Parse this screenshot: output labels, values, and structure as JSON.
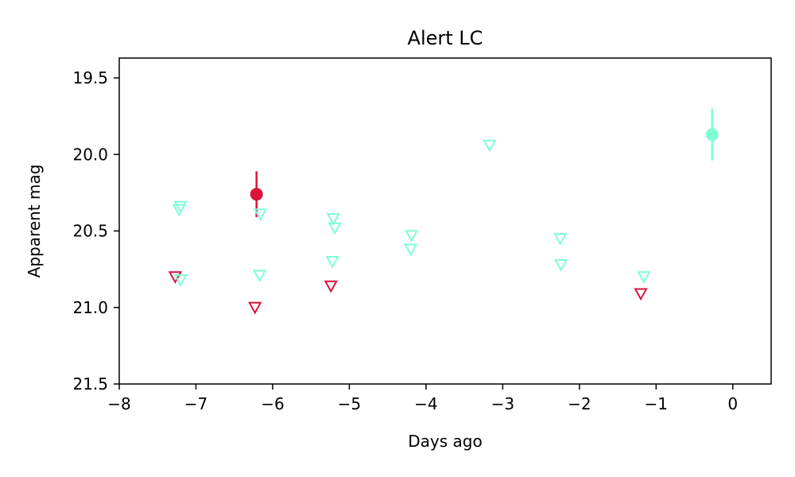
{
  "chart_data": {
    "type": "scatter",
    "title": "Alert LC",
    "xlabel": "Days ago",
    "ylabel": "Apparent mag",
    "xlim": [
      -8,
      0.5
    ],
    "ylim": [
      21.5,
      19.37
    ],
    "y_inverted": true,
    "grid": false,
    "x_ticks": [
      -8,
      -7,
      -6,
      -5,
      -4,
      -3,
      -2,
      -1,
      0
    ],
    "x_tick_labels": [
      "−8",
      "−7",
      "−6",
      "−5",
      "−4",
      "−3",
      "−2",
      "−1",
      "0"
    ],
    "y_ticks": [
      19.5,
      20.0,
      20.5,
      21.0,
      21.5
    ],
    "y_tick_labels": [
      "19.5",
      "20.0",
      "20.5",
      "21.0",
      "21.5"
    ],
    "colors": {
      "band_a": "#DC143C",
      "band_b": "#7FFFD4"
    },
    "series": [
      {
        "color": "#DC143C",
        "detections": [
          {
            "x": -6.21,
            "y": 20.26,
            "yerr": 0.15
          }
        ],
        "upper_limits": [
          {
            "x": -7.27,
            "y": 20.8
          },
          {
            "x": -6.23,
            "y": 21.0
          },
          {
            "x": -5.24,
            "y": 20.86
          },
          {
            "x": -1.2,
            "y": 20.91
          }
        ]
      },
      {
        "color": "#7FFFD4",
        "detections": [
          {
            "x": -0.27,
            "y": 19.87,
            "yerr": 0.17
          }
        ],
        "upper_limits": [
          {
            "x": -7.2,
            "y": 20.34
          },
          {
            "x": -7.22,
            "y": 20.36
          },
          {
            "x": -7.2,
            "y": 20.82
          },
          {
            "x": -6.16,
            "y": 20.39
          },
          {
            "x": -6.17,
            "y": 20.79
          },
          {
            "x": -5.21,
            "y": 20.42
          },
          {
            "x": -5.19,
            "y": 20.48
          },
          {
            "x": -5.22,
            "y": 20.7
          },
          {
            "x": -4.19,
            "y": 20.53
          },
          {
            "x": -4.2,
            "y": 20.62
          },
          {
            "x": -3.17,
            "y": 19.94
          },
          {
            "x": -2.25,
            "y": 20.55
          },
          {
            "x": -2.24,
            "y": 20.72
          },
          {
            "x": -1.16,
            "y": 20.8
          }
        ]
      }
    ]
  }
}
